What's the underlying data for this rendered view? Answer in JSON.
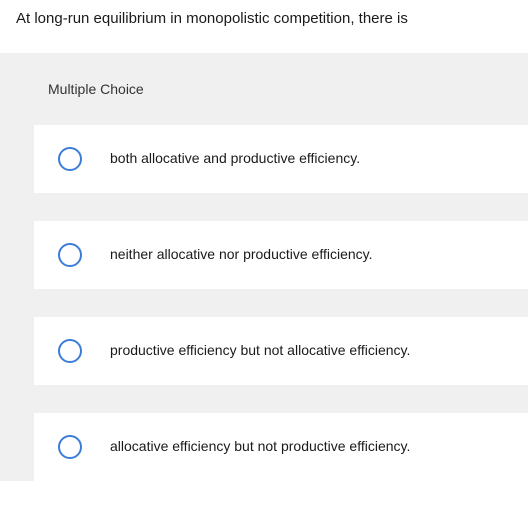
{
  "question": {
    "prompt": "At long-run equilibrium in monopolistic competition, there is"
  },
  "section": {
    "header": "Multiple Choice"
  },
  "options": [
    {
      "label": "both allocative and productive efficiency."
    },
    {
      "label": "neither allocative nor productive efficiency."
    },
    {
      "label": "productive efficiency but not allocative efficiency."
    },
    {
      "label": "allocative efficiency but not productive efficiency."
    }
  ],
  "colors": {
    "radio_border": "#3b7dd8",
    "page_bg": "#ffffff",
    "section_bg": "#f0f0f0",
    "text": "#1a1a1a"
  }
}
